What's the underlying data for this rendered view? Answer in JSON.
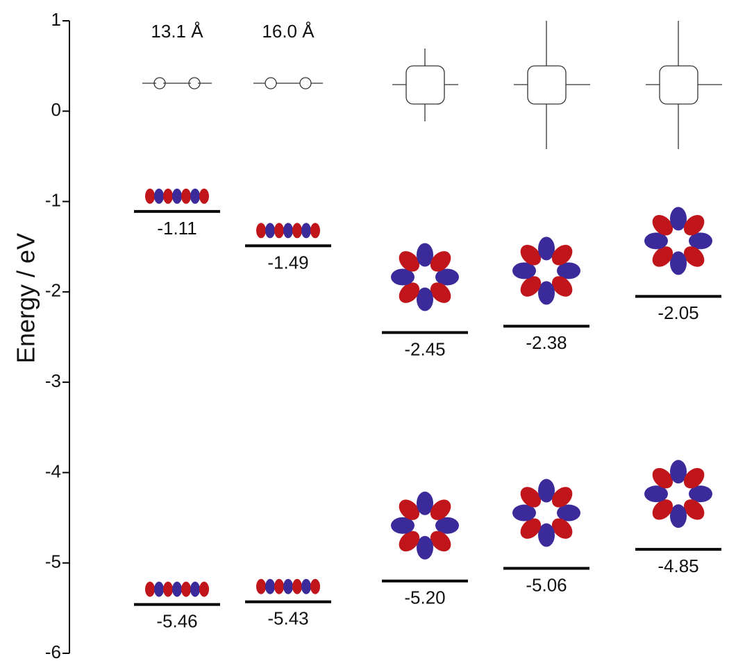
{
  "chart_data": {
    "type": "energy_level",
    "ylabel": "Energy / eV",
    "categories": [
      "13.1 Å",
      "16.0 Å",
      null,
      null,
      null
    ],
    "series": [
      {
        "values": [
          -1.11,
          -1.49,
          -2.45,
          -2.38,
          -2.05
        ]
      },
      {
        "values": [
          -5.46,
          -5.43,
          -5.2,
          -5.06,
          -4.85
        ],
        "value_labels": [
          "-5.46",
          "-5.43",
          "-5.20",
          "-5.06",
          "-4.85"
        ]
      }
    ],
    "ylim": [
      -6,
      1
    ],
    "yticks": [
      -6,
      -5,
      -4,
      -3,
      -2,
      -1,
      0,
      1
    ],
    "color": "#000000"
  }
}
